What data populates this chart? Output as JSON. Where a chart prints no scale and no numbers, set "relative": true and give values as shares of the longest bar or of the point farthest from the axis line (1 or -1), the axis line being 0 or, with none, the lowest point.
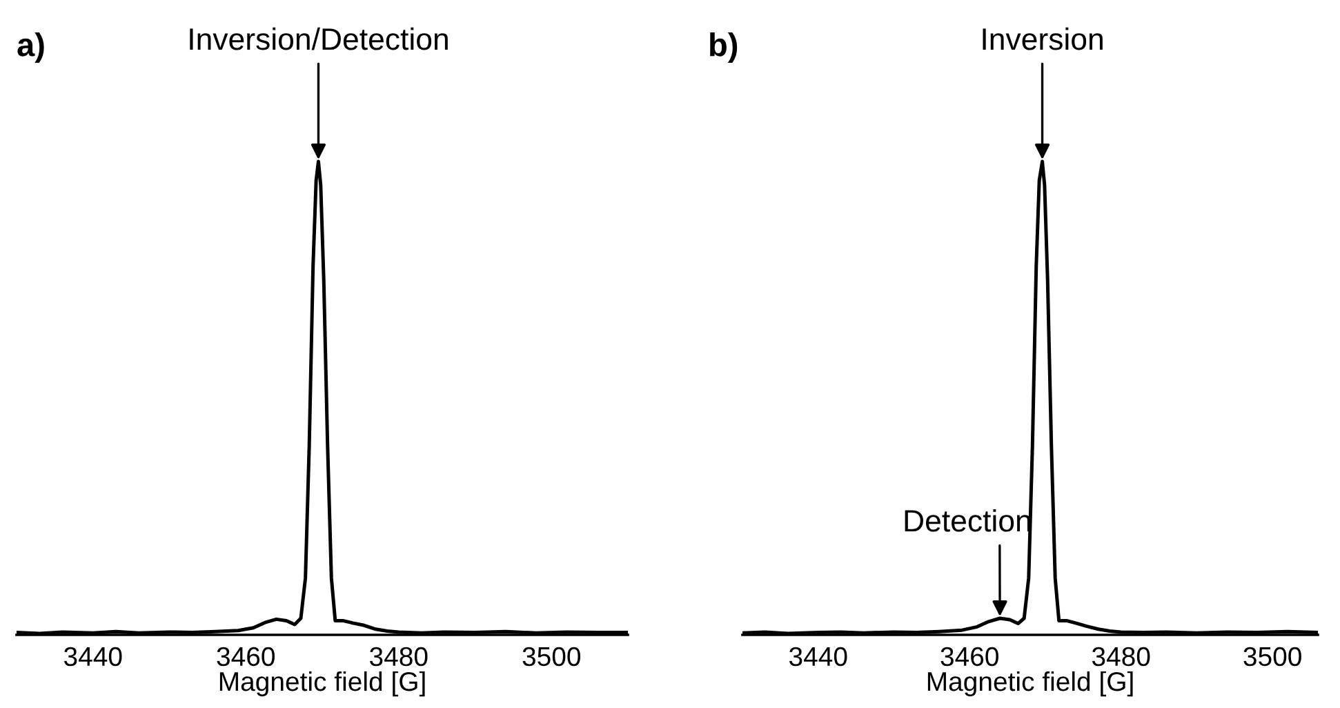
{
  "chart_data": [
    {
      "type": "line",
      "title": "a)",
      "xlabel": "Magnetic field [G]",
      "relative": true,
      "xlim": [
        3430,
        3510
      ],
      "xticks": [
        3440,
        3460,
        3480,
        3500
      ],
      "tick_labels": "x",
      "x": [
        3430,
        3433,
        3436,
        3440,
        3443,
        3446,
        3450,
        3453,
        3456,
        3459,
        3461,
        3462.5,
        3464,
        3465.3,
        3466.4,
        3467.2,
        3467.8,
        3468.3,
        3468.8,
        3469.2,
        3469.5,
        3469.8,
        3470.2,
        3470.7,
        3471.2,
        3471.7,
        3472.7,
        3474,
        3475.5,
        3477,
        3478.5,
        3480,
        3483,
        3486,
        3490,
        3494,
        3498,
        3502,
        3506,
        3510
      ],
      "series": [
        {
          "color": "#000000",
          "values": [
            0.005,
            0.003,
            0.006,
            0.004,
            0.007,
            0.004,
            0.006,
            0.005,
            0.007,
            0.009,
            0.015,
            0.026,
            0.033,
            0.03,
            0.022,
            0.035,
            0.12,
            0.4,
            0.78,
            0.96,
            1.0,
            0.95,
            0.75,
            0.4,
            0.12,
            0.03,
            0.03,
            0.025,
            0.02,
            0.012,
            0.008,
            0.006,
            0.004,
            0.006,
            0.005,
            0.007,
            0.004,
            0.006,
            0.005,
            0.005
          ]
        }
      ],
      "annotations": [
        {
          "text": "Inversion/Detection",
          "x": 3469.5,
          "y": 1.0
        }
      ]
    },
    {
      "type": "line",
      "title": "b)",
      "xlabel": "Magnetic field [G]",
      "relative": true,
      "xlim": [
        3430,
        3506
      ],
      "xticks": [
        3440,
        3460,
        3480,
        3500
      ],
      "tick_labels": "x",
      "x": [
        3430,
        3433,
        3436,
        3440,
        3443,
        3446,
        3450,
        3453,
        3456,
        3459,
        3461,
        3462.5,
        3464,
        3465.3,
        3466.4,
        3467.2,
        3467.8,
        3468.3,
        3468.8,
        3469.2,
        3469.6,
        3469.9,
        3470.3,
        3470.8,
        3471.3,
        3471.8,
        3472.8,
        3474,
        3475.5,
        3477,
        3478.5,
        3480,
        3483,
        3486,
        3490,
        3494,
        3498,
        3502,
        3506
      ],
      "series": [
        {
          "color": "#000000",
          "values": [
            0.004,
            0.006,
            0.003,
            0.005,
            0.006,
            0.004,
            0.006,
            0.005,
            0.007,
            0.01,
            0.017,
            0.028,
            0.035,
            0.032,
            0.024,
            0.035,
            0.12,
            0.4,
            0.78,
            0.96,
            1.0,
            0.95,
            0.75,
            0.4,
            0.12,
            0.03,
            0.03,
            0.025,
            0.018,
            0.012,
            0.008,
            0.006,
            0.005,
            0.006,
            0.004,
            0.006,
            0.005,
            0.007,
            0.005
          ]
        }
      ],
      "annotations": [
        {
          "text": "Inversion",
          "x": 3469.6,
          "y": 1.0
        },
        {
          "text": "Detection",
          "x": 3464,
          "y": 0.035
        }
      ]
    }
  ]
}
